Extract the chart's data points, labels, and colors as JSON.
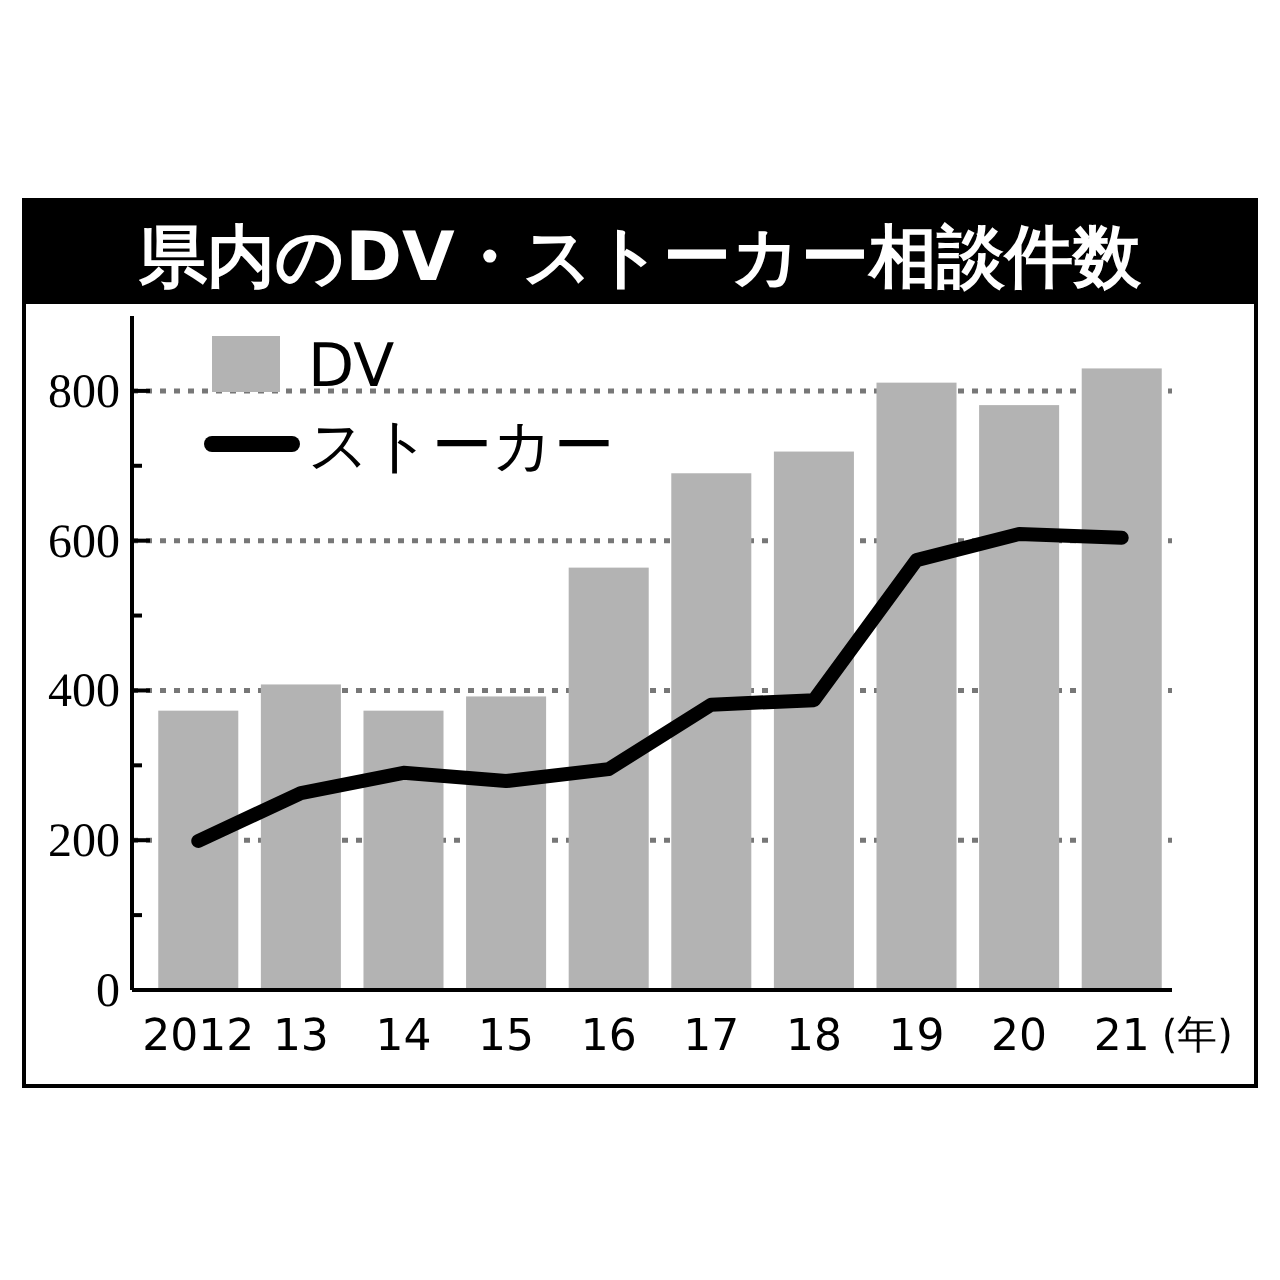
{
  "chart_data": {
    "type": "bar",
    "title": "県内のDV・ストーカー相談件数",
    "xlabel": "(年)",
    "categories": [
      "2012",
      "13",
      "14",
      "15",
      "16",
      "17",
      "18",
      "19",
      "20",
      "21"
    ],
    "series": [
      {
        "name": "DV",
        "color": "#b3b3b3",
        "values": [
          373,
          408,
          373,
          392,
          564,
          690,
          719,
          811,
          781,
          830
        ]
      },
      {
        "name": "ストーカー",
        "type": "line",
        "color": "#000000",
        "values": [
          199,
          263,
          290,
          279,
          295,
          381,
          387,
          574,
          609,
          604
        ]
      }
    ],
    "ylim": [
      0,
      900
    ],
    "yticks": [
      0,
      {
        "value": 100,
        "label": null
      },
      200,
      {
        "value": 300,
        "label": null
      },
      400,
      {
        "value": 500,
        "label": null
      },
      600,
      {
        "value": 700,
        "label": null
      },
      800
    ],
    "grid": "y",
    "legend": "top left",
    "marker": "none",
    "line_style": "solid"
  }
}
